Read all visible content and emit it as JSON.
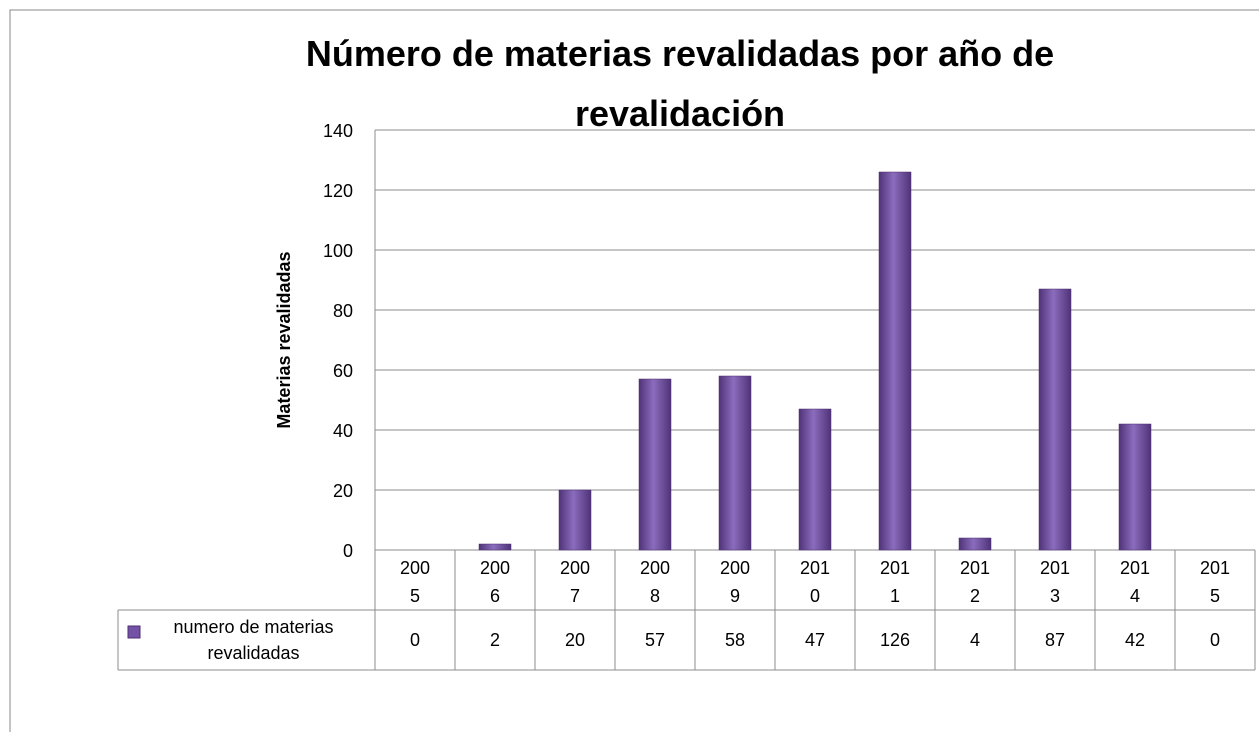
{
  "chart_data": {
    "type": "bar",
    "title": "Número de materias revalidadas por año de revalidación",
    "y_label": "Materias revalidadas",
    "categories": [
      "2005",
      "2006",
      "2007",
      "2008",
      "2009",
      "2010",
      "2011",
      "2012",
      "2013",
      "2014",
      "2015"
    ],
    "series": [
      {
        "name": "numero de materias revalidadas",
        "color": "#7452a6",
        "values": [
          0,
          2,
          20,
          57,
          58,
          47,
          126,
          4,
          87,
          42,
          0
        ]
      }
    ],
    "ylim": [
      0,
      140
    ],
    "yticks": [
      0,
      20,
      40,
      60,
      80,
      100,
      120,
      140
    ],
    "grid": true,
    "data_table": true
  }
}
